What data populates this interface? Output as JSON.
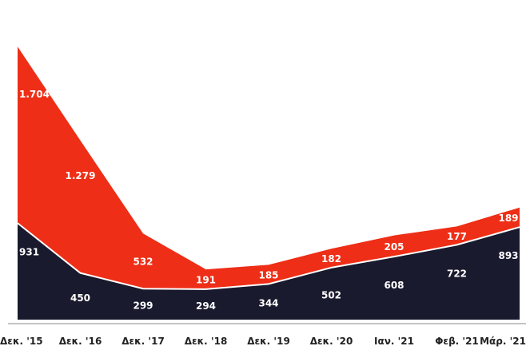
{
  "chart_data": {
    "type": "area",
    "stacked": true,
    "title": "",
    "xlabel": "",
    "ylabel": "",
    "categories": [
      "Δεκ. '15",
      "Δεκ. '16",
      "Δεκ. '17",
      "Δεκ. '18",
      "Δεκ. '19",
      "Δεκ. '20",
      "Ιαν. '21",
      "Φεβ. '21",
      "Μάρ. '21"
    ],
    "series": [
      {
        "values": [
          931,
          450,
          299,
          294,
          344,
          502,
          608,
          722,
          893
        ],
        "labels": [
          "931",
          "450",
          "299",
          "294",
          "344",
          "502",
          "608",
          "722",
          "893"
        ],
        "color": "#1a1a2e"
      },
      {
        "values": [
          1704,
          1279,
          532,
          191,
          185,
          182,
          205,
          177,
          189
        ],
        "labels": [
          "1.704",
          "1.279",
          "532",
          "191",
          "185",
          "182",
          "205",
          "177",
          "189"
        ],
        "color": "#ee2e16"
      }
    ],
    "ylim": [
      0,
      2730
    ],
    "grid": false,
    "legend": "none"
  }
}
